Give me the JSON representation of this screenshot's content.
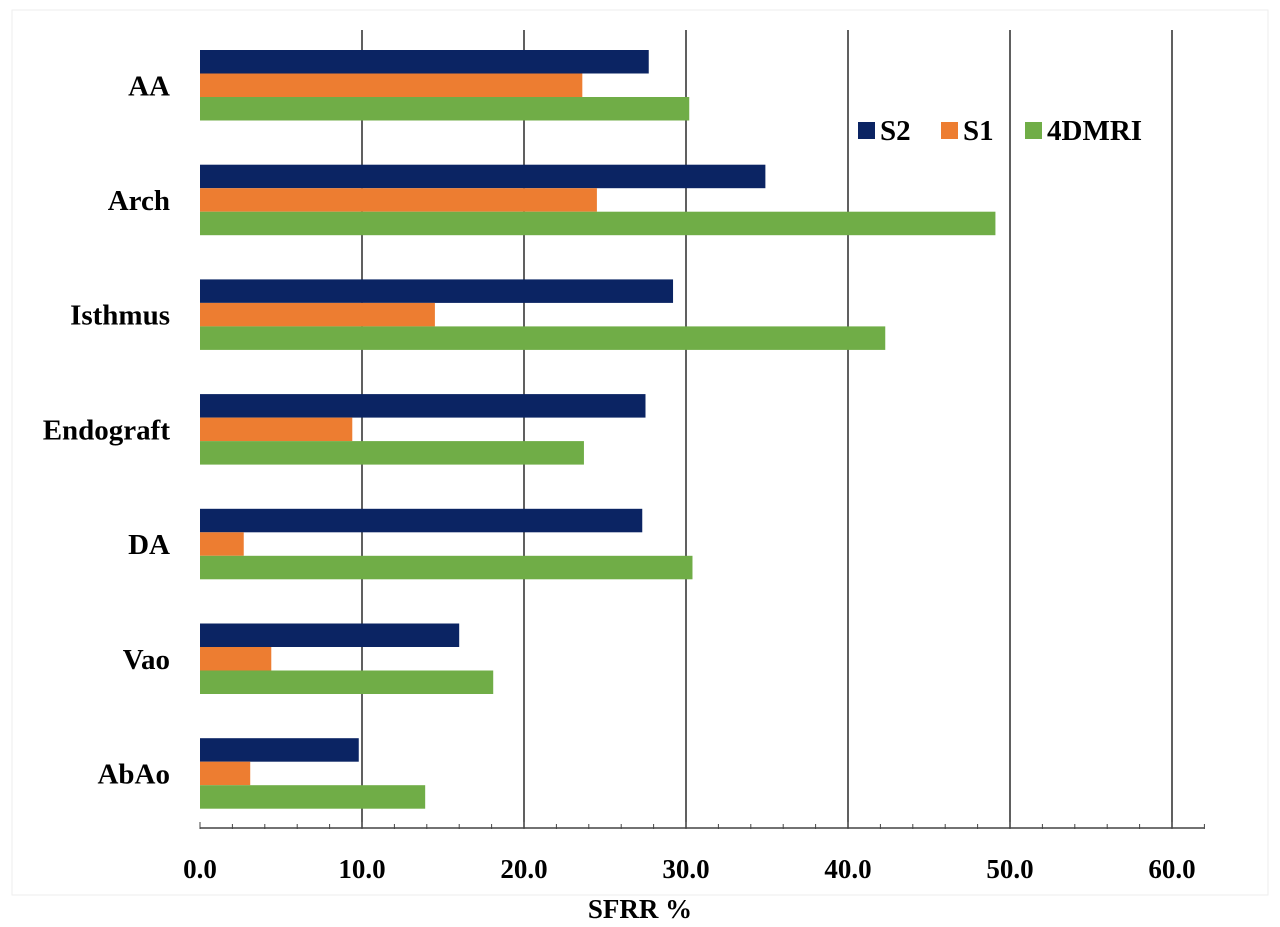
{
  "chart_data": {
    "type": "bar",
    "orientation": "horizontal",
    "categories": [
      "AA",
      "Arch",
      "Isthmus",
      "Endograft",
      "DA",
      "Vao",
      "AbAo"
    ],
    "series": [
      {
        "name": "S2",
        "color": "#0b2463",
        "values": [
          27.7,
          34.9,
          29.2,
          27.5,
          27.3,
          16.0,
          9.8
        ]
      },
      {
        "name": "S1",
        "color": "#ed7d31",
        "values": [
          23.6,
          24.5,
          14.5,
          9.4,
          2.7,
          4.4,
          3.1
        ]
      },
      {
        "name": "4DMRI",
        "color": "#70ad47",
        "values": [
          30.2,
          49.1,
          42.3,
          23.7,
          30.4,
          18.1,
          13.9
        ]
      }
    ],
    "xlabel": "SFRR %",
    "xlim": [
      0,
      62
    ],
    "xticks": [
      0,
      10,
      20,
      30,
      40,
      50,
      60
    ],
    "xtick_labels": [
      "0.0",
      "10.0",
      "20.0",
      "30.0",
      "40.0",
      "50.0",
      "60.0"
    ],
    "grid": "vertical",
    "legend_position": "top-right"
  }
}
